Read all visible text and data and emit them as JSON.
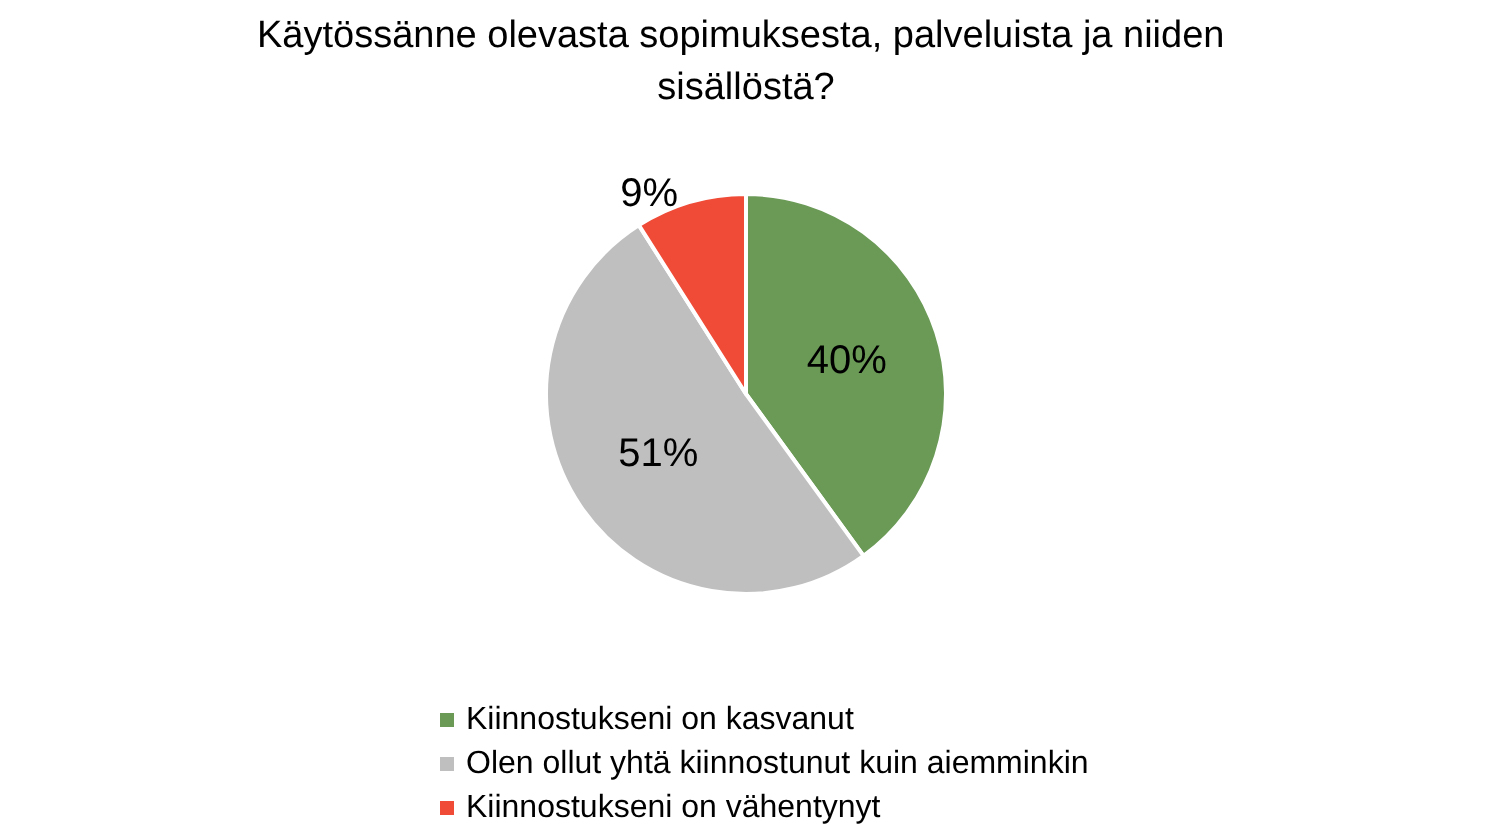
{
  "chart_data": {
    "type": "pie",
    "title": "Käytössänne olevasta sopimuksesta, palveluista ja niiden sisällöstä?",
    "categories": [
      "Kiinnostukseni on kasvanut",
      "Olen ollut yhtä kiinnostunut kuin aiemminkin",
      "Kiinnostukseni on vähentynyt"
    ],
    "values": [
      40,
      51,
      9
    ],
    "colors": [
      "#6a9a56",
      "#bfbfbf",
      "#ef4b37"
    ],
    "value_labels": [
      "40%",
      "51%",
      "9%"
    ],
    "legend": "bottom"
  }
}
